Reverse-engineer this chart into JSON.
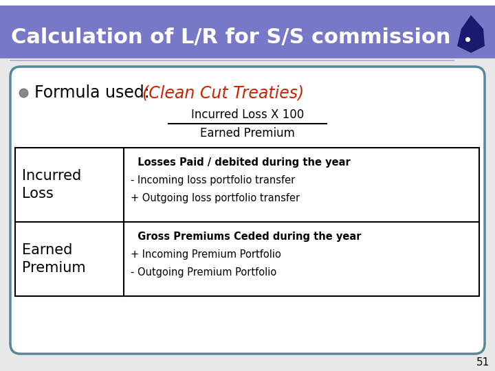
{
  "title": "Calculation of L/R for S/S commission",
  "title_bg_color": "#7878C8",
  "title_text_color": "#FFFFFF",
  "slide_bg_color": "#E8E8E8",
  "header_line_color": "#9999CC",
  "bullet_text_normal": "Formula used: ",
  "bullet_text_italic": "(Clean Cut Treaties)",
  "bullet_text_italic_color": "#CC2200",
  "formula_numerator": "Incurred Loss X 100",
  "formula_denominator": "Earned Premium",
  "table_border_color": "#558899",
  "row1_label": "Incurred\nLoss",
  "row1_lines": [
    {
      "text": "  Losses Paid / debited during the year",
      "bold": true,
      "size": 10.5
    },
    {
      "text": "- Incoming loss portfolio transfer",
      "bold": false,
      "size": 10.5
    },
    {
      "text": "+ Outgoing loss portfolio transfer",
      "bold": false,
      "size": 10.5
    }
  ],
  "row2_label": "Earned\nPremium",
  "row2_lines": [
    {
      "text": "  Gross Premiums Ceded during the year",
      "bold": true,
      "size": 10.5
    },
    {
      "text": "+ Incoming Premium Portfolio",
      "bold": false,
      "size": 10.5
    },
    {
      "text": "- Outgoing Premium Portfolio",
      "bold": false,
      "size": 10.5
    }
  ],
  "page_number": "51"
}
